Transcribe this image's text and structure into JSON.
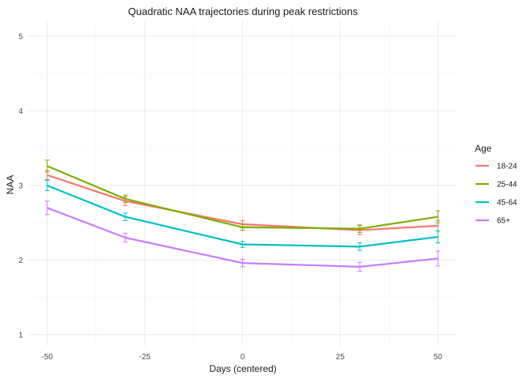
{
  "chart_data": {
    "type": "line",
    "title": "Quadratic NAA trajectories during peak restrictions",
    "xlabel": "Days (centered)",
    "ylabel": "NAA",
    "xlim": [
      -55,
      55
    ],
    "ylim": [
      0.85,
      5.2
    ],
    "x_ticks": [
      -50,
      -25,
      0,
      25,
      50
    ],
    "x_tick_labels": [
      "-50",
      "-25",
      "0",
      "25",
      "50"
    ],
    "y_ticks": [
      1,
      2,
      3,
      4,
      5
    ],
    "y_tick_labels": [
      "1",
      "2",
      "3",
      "4",
      "5"
    ],
    "x_minor": [
      -37.5,
      -12.5,
      12.5,
      37.5
    ],
    "y_minor": [
      1.5,
      2.5,
      3.5,
      4.5
    ],
    "grid": true,
    "legend_title": "Age",
    "legend_position": "right",
    "x": [
      -50,
      -30,
      0,
      30,
      50
    ],
    "series": [
      {
        "name": "18-24",
        "color": "#F8766D",
        "values": [
          3.14,
          2.79,
          2.48,
          2.4,
          2.46
        ],
        "err": [
          0.06,
          0.06,
          0.05,
          0.06,
          0.07
        ]
      },
      {
        "name": "25-44",
        "color": "#7CAE00",
        "values": [
          3.26,
          2.82,
          2.44,
          2.42,
          2.58
        ],
        "err": [
          0.08,
          0.05,
          0.04,
          0.05,
          0.08
        ]
      },
      {
        "name": "45-64",
        "color": "#00BFC4",
        "values": [
          3.0,
          2.58,
          2.21,
          2.18,
          2.31
        ],
        "err": [
          0.07,
          0.05,
          0.04,
          0.05,
          0.08
        ]
      },
      {
        "name": "65+",
        "color": "#C77CFF",
        "values": [
          2.7,
          2.3,
          1.96,
          1.91,
          2.02
        ],
        "err": [
          0.09,
          0.06,
          0.05,
          0.06,
          0.1
        ]
      }
    ]
  }
}
